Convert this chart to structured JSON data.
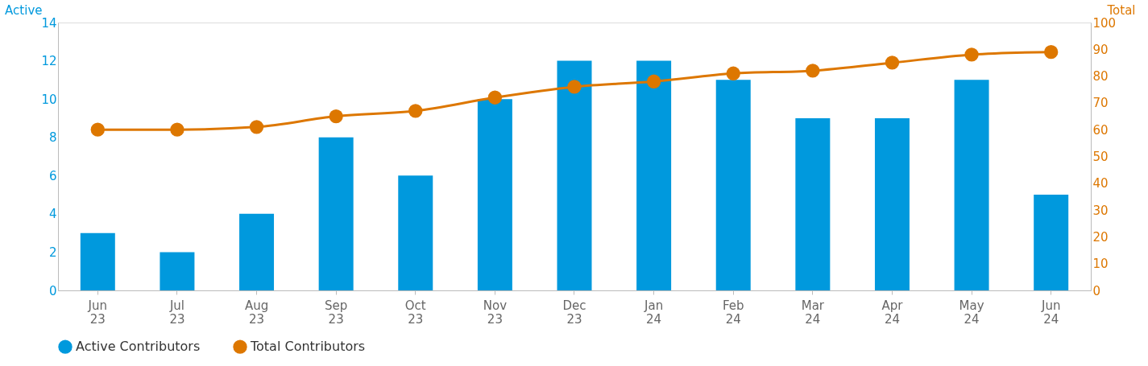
{
  "chart_data": {
    "type": "bar",
    "ylabel": "Active",
    "y2label": "Total",
    "categories": [
      "Jun 23",
      "Jul 23",
      "Aug 23",
      "Sep 23",
      "Oct 23",
      "Nov 23",
      "Dec 23",
      "Jan 24",
      "Feb 24",
      "Mar 24",
      "Apr 24",
      "May 24",
      "Jun 24"
    ],
    "series": [
      {
        "name": "Active Contributors",
        "color": "#0099dd",
        "values": [
          3,
          2,
          4,
          8,
          6,
          10,
          12,
          12,
          11,
          9,
          9,
          11,
          5
        ]
      },
      {
        "name": "Total Contributors",
        "type": "line",
        "axis": "y2",
        "color": "#dd7700",
        "marker": "circle",
        "values": [
          60,
          60,
          61,
          65,
          67,
          72,
          76,
          78,
          81,
          82,
          85,
          88,
          89
        ]
      }
    ],
    "ylim": [
      0,
      14
    ],
    "yticks": [
      0,
      2,
      4,
      6,
      8,
      10,
      12,
      14
    ],
    "y2lim": [
      0,
      100
    ],
    "y2ticks": [
      0,
      10,
      20,
      30,
      40,
      50,
      60,
      70,
      80,
      90,
      100
    ],
    "grid": false,
    "legend": "bottom"
  }
}
